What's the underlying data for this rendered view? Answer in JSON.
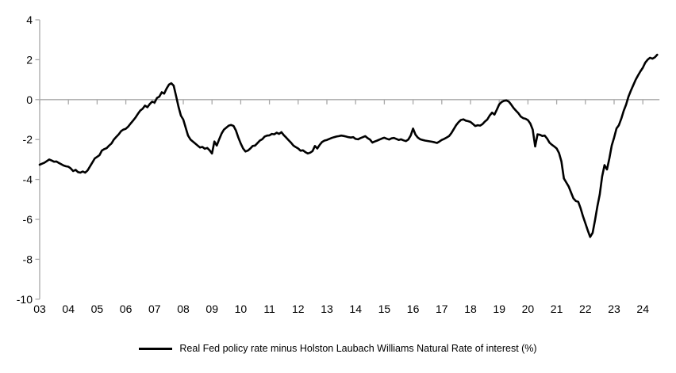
{
  "legend": {
    "label": "Real Fed policy rate minus Holston Laubach Williams Natural Rate of interest (%)"
  },
  "chart_data": {
    "type": "line",
    "title": "",
    "xlabel": "",
    "ylabel": "",
    "x_start": "2003-01",
    "x_end": "2024-07",
    "x_step_months": 1,
    "xlim_years": [
      2003.0,
      2024.58
    ],
    "ylim": [
      -10,
      4
    ],
    "y_ticks": [
      4,
      2,
      0,
      -2,
      -4,
      -6,
      -8,
      -10
    ],
    "x_tick_years": [
      2003,
      2004,
      2005,
      2006,
      2007,
      2008,
      2009,
      2010,
      2011,
      2012,
      2013,
      2014,
      2015,
      2016,
      2017,
      2018,
      2019,
      2020,
      2021,
      2022,
      2023,
      2024
    ],
    "x_tick_labels": [
      "03",
      "04",
      "05",
      "06",
      "07",
      "08",
      "09",
      "10",
      "11",
      "12",
      "13",
      "14",
      "15",
      "16",
      "17",
      "18",
      "19",
      "20",
      "21",
      "22",
      "23",
      "24"
    ],
    "grid": "zero-line-only",
    "legend_position": "bottom-center",
    "axis_color": "#a8a8a8",
    "zero_line_color": "#a8a8a8",
    "text_color": "#000000",
    "background": "#ffffff",
    "series": [
      {
        "name": "Real Fed policy rate minus Holston Laubach Williams Natural Rate of interest (%)",
        "color": "#000000",
        "line_width": 2.6,
        "values": [
          -3.26,
          -3.21,
          -3.16,
          -3.08,
          -3.0,
          -3.05,
          -3.11,
          -3.1,
          -3.17,
          -3.24,
          -3.3,
          -3.34,
          -3.36,
          -3.45,
          -3.58,
          -3.52,
          -3.63,
          -3.66,
          -3.6,
          -3.66,
          -3.55,
          -3.35,
          -3.15,
          -2.95,
          -2.87,
          -2.78,
          -2.55,
          -2.48,
          -2.43,
          -2.3,
          -2.2,
          -2.0,
          -1.87,
          -1.74,
          -1.58,
          -1.5,
          -1.46,
          -1.35,
          -1.2,
          -1.05,
          -0.9,
          -0.72,
          -0.55,
          -0.46,
          -0.3,
          -0.38,
          -0.22,
          -0.1,
          -0.15,
          0.08,
          0.15,
          0.37,
          0.3,
          0.55,
          0.75,
          0.82,
          0.7,
          0.17,
          -0.36,
          -0.8,
          -1.0,
          -1.4,
          -1.8,
          -2.0,
          -2.1,
          -2.2,
          -2.3,
          -2.4,
          -2.37,
          -2.46,
          -2.42,
          -2.54,
          -2.7,
          -2.1,
          -2.3,
          -1.98,
          -1.7,
          -1.5,
          -1.4,
          -1.3,
          -1.27,
          -1.32,
          -1.55,
          -1.9,
          -2.2,
          -2.45,
          -2.6,
          -2.55,
          -2.45,
          -2.32,
          -2.3,
          -2.18,
          -2.05,
          -1.98,
          -1.85,
          -1.8,
          -1.79,
          -1.72,
          -1.74,
          -1.66,
          -1.72,
          -1.63,
          -1.78,
          -1.9,
          -2.03,
          -2.16,
          -2.3,
          -2.38,
          -2.45,
          -2.56,
          -2.54,
          -2.63,
          -2.7,
          -2.66,
          -2.58,
          -2.32,
          -2.45,
          -2.26,
          -2.12,
          -2.05,
          -2.02,
          -1.97,
          -1.92,
          -1.88,
          -1.85,
          -1.83,
          -1.8,
          -1.82,
          -1.85,
          -1.88,
          -1.9,
          -1.88,
          -1.97,
          -1.99,
          -1.93,
          -1.88,
          -1.83,
          -1.93,
          -2.0,
          -2.15,
          -2.1,
          -2.05,
          -2.0,
          -1.95,
          -1.91,
          -1.96,
          -2.0,
          -1.94,
          -1.92,
          -1.97,
          -2.02,
          -1.99,
          -2.04,
          -2.08,
          -2.0,
          -1.8,
          -1.45,
          -1.75,
          -1.9,
          -1.99,
          -2.02,
          -2.05,
          -2.07,
          -2.09,
          -2.11,
          -2.14,
          -2.17,
          -2.1,
          -2.02,
          -1.97,
          -1.9,
          -1.83,
          -1.68,
          -1.48,
          -1.28,
          -1.13,
          -1.02,
          -0.99,
          -1.05,
          -1.08,
          -1.12,
          -1.22,
          -1.32,
          -1.28,
          -1.3,
          -1.23,
          -1.1,
          -1.0,
          -0.8,
          -0.65,
          -0.75,
          -0.5,
          -0.24,
          -0.12,
          -0.06,
          -0.04,
          -0.1,
          -0.25,
          -0.42,
          -0.55,
          -0.68,
          -0.85,
          -0.93,
          -0.96,
          -1.03,
          -1.2,
          -1.5,
          -2.35,
          -1.74,
          -1.76,
          -1.82,
          -1.8,
          -1.95,
          -2.16,
          -2.26,
          -2.35,
          -2.45,
          -2.68,
          -3.1,
          -3.95,
          -4.15,
          -4.35,
          -4.65,
          -4.95,
          -5.08,
          -5.12,
          -5.45,
          -5.85,
          -6.2,
          -6.55,
          -6.88,
          -6.68,
          -6.05,
          -5.35,
          -4.75,
          -3.85,
          -3.28,
          -3.5,
          -2.95,
          -2.3,
          -1.9,
          -1.45,
          -1.28,
          -0.95,
          -0.56,
          -0.25,
          0.15,
          0.45,
          0.72,
          1.0,
          1.22,
          1.42,
          1.6,
          1.85,
          2.0,
          2.1,
          2.05,
          2.12,
          2.25
        ]
      }
    ]
  }
}
